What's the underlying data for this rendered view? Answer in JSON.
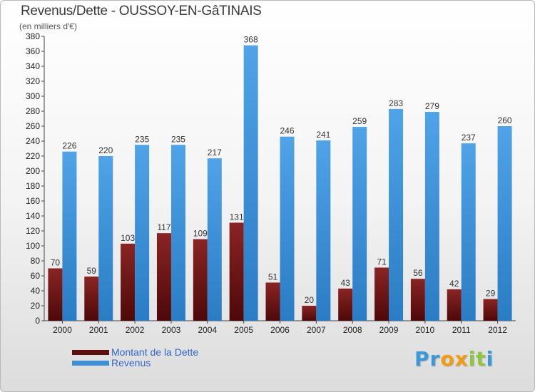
{
  "title": "Revenus/Dette - OUSSOY-EN-GâTINAIS",
  "subtitle": "(en milliers d'€)",
  "legend": {
    "debt_label": "Montant de la Dette",
    "revenue_label": "Revenus"
  },
  "logo": {
    "letters": [
      "P",
      "r",
      "o",
      "x",
      "i",
      "t",
      "i"
    ]
  },
  "colors": {
    "debt": "#7a1a1a",
    "revenue": "#3d8fd6",
    "logo": [
      "#3a9ad9",
      "#3a9ad9",
      "#f39c12",
      "#f39c12",
      "#8dc63f",
      "#8dc63f",
      "#3a9ad9"
    ]
  },
  "chart_data": {
    "type": "bar",
    "title": "Revenus/Dette - OUSSOY-EN-GâTINAIS",
    "ylabel": "(en milliers d'€)",
    "categories": [
      "2000",
      "2001",
      "2002",
      "2003",
      "2004",
      "2005",
      "2006",
      "2007",
      "2008",
      "2009",
      "2010",
      "2011",
      "2012"
    ],
    "series": [
      {
        "name": "Montant de la Dette",
        "values": [
          70,
          59,
          103,
          117,
          109,
          131,
          51,
          20,
          43,
          71,
          56,
          42,
          29
        ]
      },
      {
        "name": "Revenus",
        "values": [
          226,
          220,
          235,
          235,
          217,
          368,
          246,
          241,
          259,
          283,
          279,
          237,
          260
        ]
      }
    ],
    "ylim": [
      0,
      380
    ],
    "ytick_step": 20,
    "grid": false,
    "legend": "bottom-left"
  }
}
